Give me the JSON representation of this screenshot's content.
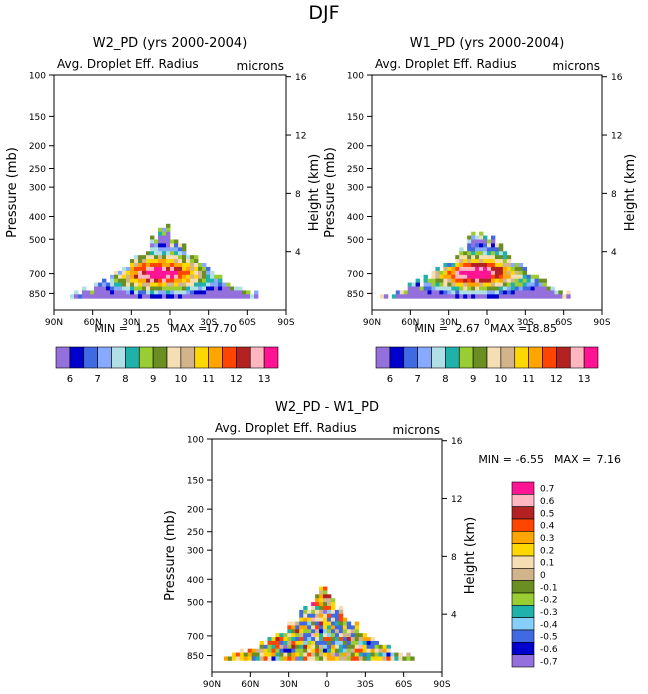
{
  "figure_title": "DJF",
  "panels": [
    {
      "title": "W2_PD (yrs 2000-2004)",
      "left_label": "Avg. Droplet Eff. Radius",
      "right_label": "microns",
      "min_label": "MIN =",
      "min_value": "1.25",
      "max_label": "MAX =",
      "max_value": "17.70"
    },
    {
      "title": "W1_PD (yrs 2000-2004)",
      "left_label": "Avg. Droplet Eff. Radius",
      "right_label": "microns",
      "min_label": "MIN =",
      "min_value": "2.67",
      "max_label": "MAX =",
      "max_value": "18.85"
    },
    {
      "title": "W2_PD - W1_PD",
      "left_label": "Avg. Droplet Eff. Radius",
      "right_label": "microns",
      "min_label": "MIN =",
      "min_value": "-6.55",
      "max_label": "MAX =",
      "max_value": "7.16"
    }
  ],
  "chart_data": {
    "type": "heatmap",
    "season": "DJF",
    "variable": "Avg. Droplet Eff. Radius",
    "units": "microns",
    "x_ticks": [
      "90N",
      "60N",
      "30N",
      "0",
      "30S",
      "60S",
      "90S"
    ],
    "x_tick_values": [
      90,
      60,
      30,
      0,
      -30,
      -60,
      -90
    ],
    "y_ticks": [
      "100",
      "150",
      "200",
      "250",
      "300",
      "400",
      "500",
      "700",
      "850"
    ],
    "y_tick_values": [
      100,
      150,
      200,
      250,
      300,
      400,
      500,
      700,
      850
    ],
    "y_range": [
      100,
      1000
    ],
    "ylabel": "Pressure (mb)",
    "y2_ticks": [
      "16",
      "12",
      "8",
      "4"
    ],
    "y2_tick_values": [
      16,
      12,
      8,
      4
    ],
    "y2label": "Height (km)",
    "colorbar_abs": {
      "levels": [
        "6",
        "7",
        "8",
        "9",
        "10",
        "11",
        "12",
        "13"
      ],
      "colors": [
        "#9370db",
        "#0000cd",
        "#4169e1",
        "#87aaff",
        "#b0e0e6",
        "#20b2aa",
        "#9acd32",
        "#6b8e23",
        "#f5deb3",
        "#d2b48c",
        "#ffd700",
        "#ffa500",
        "#ff4500",
        "#b22222",
        "#ffb6c1",
        "#ff1493"
      ]
    },
    "colorbar_diff": {
      "levels": [
        "0.7",
        "0.6",
        "0.5",
        "0.4",
        "0.3",
        "0.2",
        "0.1",
        "0",
        "-0.1",
        "-0.2",
        "-0.3",
        "-0.4",
        "-0.5",
        "-0.6",
        "-0.7"
      ],
      "colors": [
        "#ff1493",
        "#ffb6c1",
        "#b22222",
        "#ff4500",
        "#ffa500",
        "#ffd700",
        "#f5deb3",
        "#d2b48c",
        "#6b8e23",
        "#9acd32",
        "#20b2aa",
        "#87cefa",
        "#4169e1",
        "#0000cd",
        "#9370db"
      ]
    },
    "panels": [
      {
        "title": "W2_PD (yrs 2000-2004)",
        "min": 1.25,
        "max": 17.7
      },
      {
        "title": "W1_PD (yrs 2000-2004)",
        "min": 2.67,
        "max": 18.85
      },
      {
        "title": "W2_PD - W1_PD",
        "min": -6.55,
        "max": 7.16
      }
    ]
  }
}
